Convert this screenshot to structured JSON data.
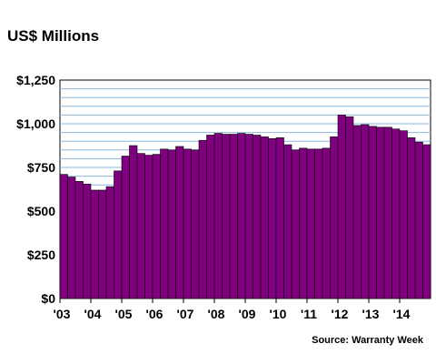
{
  "title": "US$ Millions",
  "source": "Source: Warranty Week",
  "colors": {
    "bar": "#800080",
    "bar_stroke": "#000000",
    "grid": "#8fb8e0",
    "plot_bg": "#ffffff"
  },
  "chart_data": {
    "type": "bar",
    "title": "US$ Millions",
    "xlabel": "",
    "ylabel": "",
    "ylim": [
      0,
      1250
    ],
    "yticks": [
      0,
      250,
      500,
      750,
      1000,
      1250
    ],
    "ytick_labels": [
      "$0",
      "$250",
      "$500",
      "$750",
      "$1,000",
      "$1,250"
    ],
    "xtick_labels": [
      "'03",
      "'04",
      "'05",
      "'06",
      "'07",
      "'08",
      "'09",
      "'10",
      "'11",
      "'12",
      "'13",
      "'14"
    ],
    "grid": true,
    "categories": [
      "2003 Q1",
      "2003 Q2",
      "2003 Q3",
      "2003 Q4",
      "2004 Q1",
      "2004 Q2",
      "2004 Q3",
      "2004 Q4",
      "2005 Q1",
      "2005 Q2",
      "2005 Q3",
      "2005 Q4",
      "2006 Q1",
      "2006 Q2",
      "2006 Q3",
      "2006 Q4",
      "2007 Q1",
      "2007 Q2",
      "2007 Q3",
      "2007 Q4",
      "2008 Q1",
      "2008 Q2",
      "2008 Q3",
      "2008 Q4",
      "2009 Q1",
      "2009 Q2",
      "2009 Q3",
      "2009 Q4",
      "2010 Q1",
      "2010 Q2",
      "2010 Q3",
      "2010 Q4",
      "2011 Q1",
      "2011 Q2",
      "2011 Q3",
      "2011 Q4",
      "2012 Q1",
      "2012 Q2",
      "2012 Q3",
      "2012 Q4",
      "2013 Q1",
      "2013 Q2",
      "2013 Q3",
      "2013 Q4",
      "2014 Q1",
      "2014 Q2",
      "2014 Q3",
      "2014 Q4"
    ],
    "values": [
      710,
      695,
      670,
      655,
      620,
      620,
      640,
      730,
      815,
      875,
      830,
      820,
      825,
      855,
      850,
      870,
      855,
      850,
      905,
      935,
      945,
      940,
      940,
      945,
      940,
      935,
      925,
      915,
      920,
      880,
      850,
      860,
      855,
      855,
      860,
      925,
      1050,
      1040,
      990,
      995,
      985,
      980,
      980,
      970,
      960,
      920,
      895,
      880
    ]
  }
}
